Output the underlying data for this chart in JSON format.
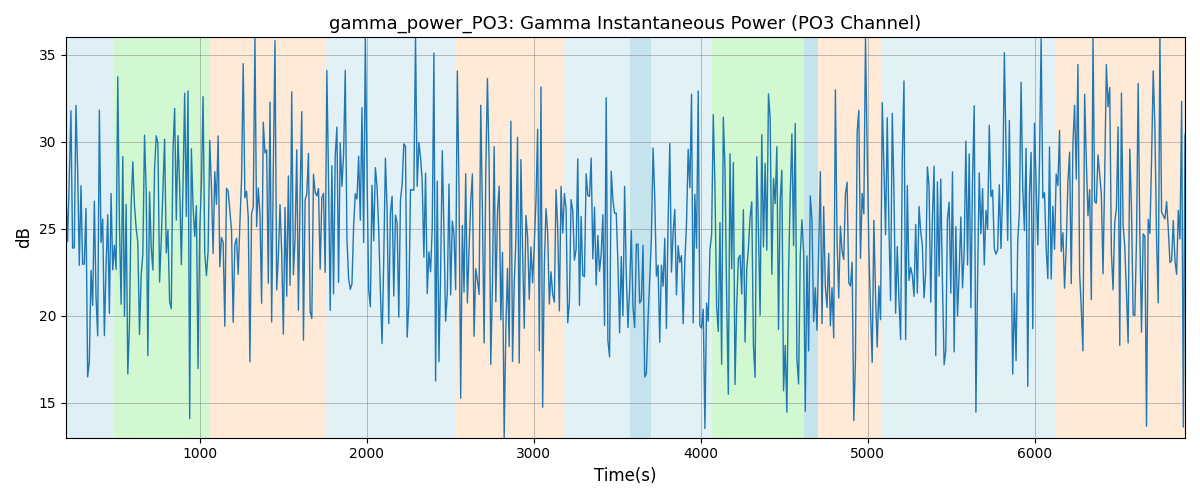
{
  "title": "gamma_power_PO3: Gamma Instantaneous Power (PO3 Channel)",
  "xlabel": "Time(s)",
  "ylabel": "dB",
  "ylim": [
    13,
    36
  ],
  "xlim": [
    200,
    6900
  ],
  "yticks": [
    15,
    20,
    25,
    30,
    35
  ],
  "background_regions": [
    {
      "xmin": 200,
      "xmax": 490,
      "color": "#add8e6",
      "alpha": 0.4
    },
    {
      "xmin": 490,
      "xmax": 1060,
      "color": "#90ee90",
      "alpha": 0.4
    },
    {
      "xmin": 1060,
      "xmax": 1750,
      "color": "#ffdab9",
      "alpha": 0.55
    },
    {
      "xmin": 1750,
      "xmax": 2530,
      "color": "#add8e6",
      "alpha": 0.35
    },
    {
      "xmin": 2530,
      "xmax": 3180,
      "color": "#ffdab9",
      "alpha": 0.55
    },
    {
      "xmin": 3180,
      "xmax": 3580,
      "color": "#add8e6",
      "alpha": 0.35
    },
    {
      "xmin": 3580,
      "xmax": 3700,
      "color": "#add8e6",
      "alpha": 0.7
    },
    {
      "xmin": 3700,
      "xmax": 4070,
      "color": "#add8e6",
      "alpha": 0.35
    },
    {
      "xmin": 4070,
      "xmax": 4620,
      "color": "#90ee90",
      "alpha": 0.4
    },
    {
      "xmin": 4620,
      "xmax": 4700,
      "color": "#add8e6",
      "alpha": 0.7
    },
    {
      "xmin": 4700,
      "xmax": 5080,
      "color": "#ffdab9",
      "alpha": 0.55
    },
    {
      "xmin": 5080,
      "xmax": 5780,
      "color": "#add8e6",
      "alpha": 0.35
    },
    {
      "xmin": 5780,
      "xmax": 6130,
      "color": "#add8e6",
      "alpha": 0.35
    },
    {
      "xmin": 6130,
      "xmax": 6900,
      "color": "#ffdab9",
      "alpha": 0.55
    }
  ],
  "line_color": "#1f77b4",
  "line_width": 1.0,
  "seed": 42,
  "figsize": [
    12,
    5
  ],
  "dpi": 100
}
